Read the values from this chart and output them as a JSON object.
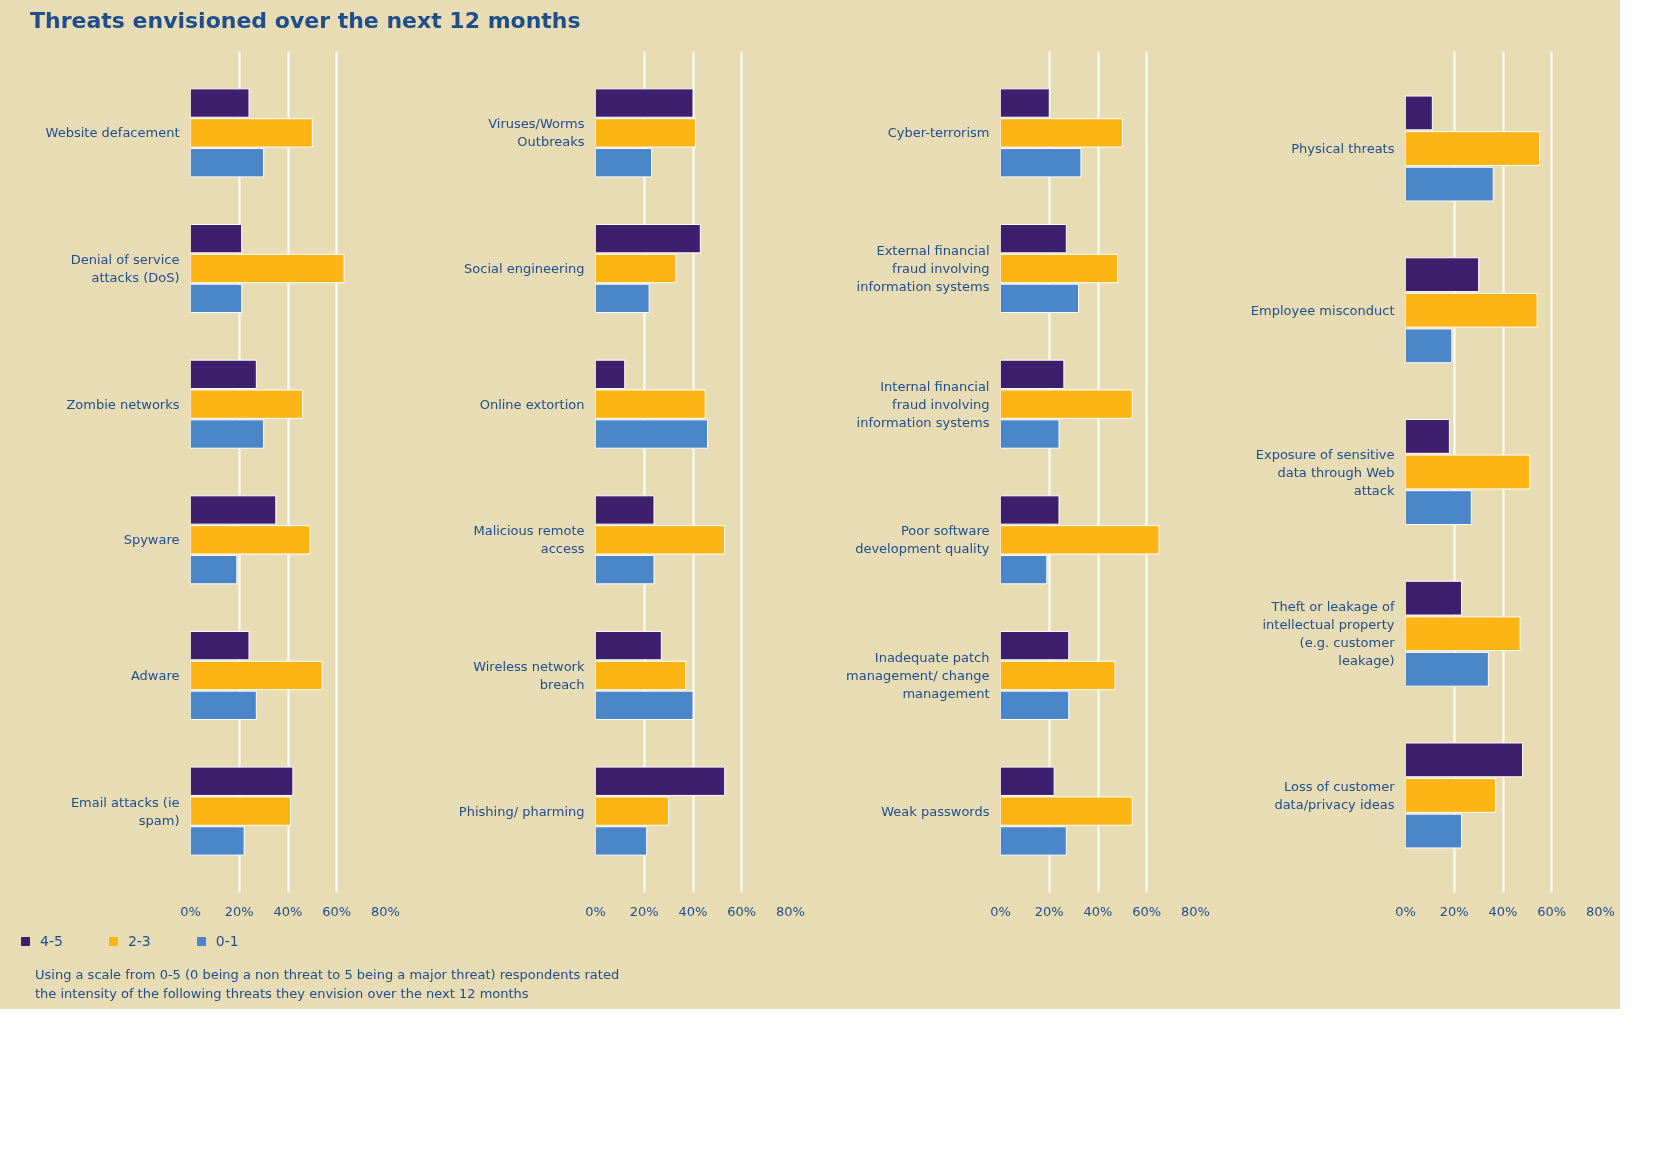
{
  "chart_data": [
    {
      "type": "bar",
      "orientation": "horizontal",
      "title": "Threats envisioned over the next 12 months",
      "categories": [
        "Website defacement",
        "Denial of service attacks (DoS)",
        "Zombie networks",
        "Spyware",
        "Adware",
        "Email attacks (ie spam)"
      ],
      "series": [
        {
          "name": "4-5",
          "color": "#3d1f6e",
          "values": [
            24,
            21,
            27,
            35,
            24,
            42
          ]
        },
        {
          "name": "2-3",
          "color": "#fdb515",
          "values": [
            50,
            63,
            46,
            49,
            54,
            41
          ]
        },
        {
          "name": "0-1",
          "color": "#4a86c8",
          "values": [
            30,
            21,
            30,
            19,
            27,
            22
          ]
        }
      ],
      "xlim": [
        0,
        80
      ],
      "xticks": [
        {
          "value": 0,
          "label": "0%"
        },
        {
          "value": 20,
          "label": "20%"
        },
        {
          "value": 40,
          "label": "40%"
        },
        {
          "value": 60,
          "label": "60%"
        },
        {
          "value": 80,
          "label": "80%"
        }
      ],
      "grid": "x",
      "legend": "bottom left",
      "annotations": [
        "Using a scale from 0-5 (0 being a non threat to 5 being a major threat) respondents rated the intensity of the following threats they envision over the next 12 months"
      ]
    },
    {
      "type": "bar",
      "orientation": "horizontal",
      "categories": [
        "Viruses/Worms Outbreaks",
        "Social engineering",
        "Online extortion",
        "Malicious remote access",
        "Wireless network breach",
        "Phishing/ pharming"
      ],
      "series": [
        {
          "color": "#3d1f6e",
          "values": [
            40,
            43,
            12,
            24,
            27,
            53
          ]
        },
        {
          "color": "#fdb515",
          "values": [
            41,
            33,
            45,
            53,
            37,
            30
          ]
        },
        {
          "color": "#4a86c8",
          "values": [
            23,
            22,
            46,
            24,
            40,
            21
          ]
        }
      ],
      "xlim": [
        0,
        80
      ],
      "xticks": [
        {
          "value": 0,
          "label": "0%"
        },
        {
          "value": 20,
          "label": "20%"
        },
        {
          "value": 40,
          "label": "40%"
        },
        {
          "value": 60,
          "label": "60%"
        },
        {
          "value": 80,
          "label": "80%"
        }
      ],
      "grid": "x"
    },
    {
      "type": "bar",
      "orientation": "horizontal",
      "categories": [
        "Cyber-terrorism",
        "External financial fraud involving information systems",
        "Internal financial fraud involving information systems",
        "Poor software development quality",
        "Inadequate patch management/ change management",
        "Weak passwords"
      ],
      "series": [
        {
          "color": "#3d1f6e",
          "values": [
            20,
            27,
            26,
            24,
            28,
            22
          ]
        },
        {
          "color": "#fdb515",
          "values": [
            50,
            48,
            54,
            65,
            47,
            54
          ]
        },
        {
          "color": "#4a86c8",
          "values": [
            33,
            32,
            24,
            19,
            28,
            27
          ]
        }
      ],
      "xlim": [
        0,
        80
      ],
      "xticks": [
        {
          "value": 0,
          "label": "0%"
        },
        {
          "value": 20,
          "label": "20%"
        },
        {
          "value": 40,
          "label": "40%"
        },
        {
          "value": 60,
          "label": "60%"
        },
        {
          "value": 80,
          "label": "80%"
        }
      ],
      "grid": "x"
    },
    {
      "type": "bar",
      "orientation": "horizontal",
      "categories": [
        "Physical threats",
        "Employee misconduct",
        "Exposure of sensitive data through Web attack",
        "Theft or leakage of intellectual property (e.g. customer leakage)",
        "Loss of customer data/privacy ideas"
      ],
      "series": [
        {
          "color": "#3d1f6e",
          "values": [
            11,
            30,
            18,
            23,
            48
          ]
        },
        {
          "color": "#fdb515",
          "values": [
            55,
            54,
            51,
            47,
            37
          ]
        },
        {
          "color": "#4a86c8",
          "values": [
            36,
            19,
            27,
            34,
            23
          ]
        }
      ],
      "xlim": [
        0,
        80
      ],
      "xticks": [
        {
          "value": 0,
          "label": "0%"
        },
        {
          "value": 20,
          "label": "20%"
        },
        {
          "value": 40,
          "label": "40%"
        },
        {
          "value": 60,
          "label": "60%"
        },
        {
          "value": 80,
          "label": "80%"
        }
      ],
      "grid": "x"
    }
  ]
}
